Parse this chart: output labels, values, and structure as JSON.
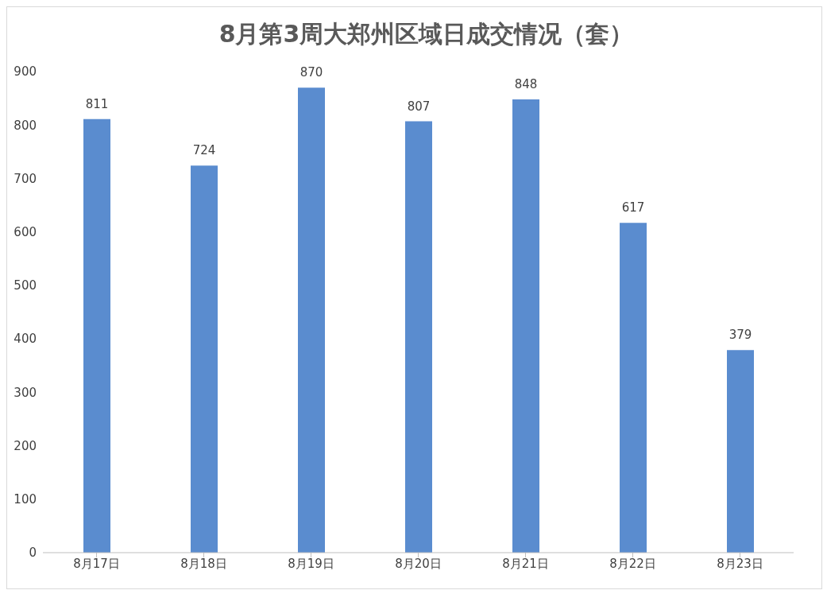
{
  "chart_data": {
    "type": "bar",
    "title": "8月第3周大郑州区域日成交情况（套）",
    "categories": [
      "8月17日",
      "8月18日",
      "8月19日",
      "8月20日",
      "8月21日",
      "8月22日",
      "8月23日"
    ],
    "values": [
      811,
      724,
      870,
      807,
      848,
      617,
      379
    ],
    "color": "#5a8ccf",
    "ylim": [
      0,
      900
    ],
    "yticks": [
      0,
      100,
      200,
      300,
      400,
      500,
      600,
      700,
      800,
      900
    ],
    "grid": false,
    "data_labels": true
  }
}
